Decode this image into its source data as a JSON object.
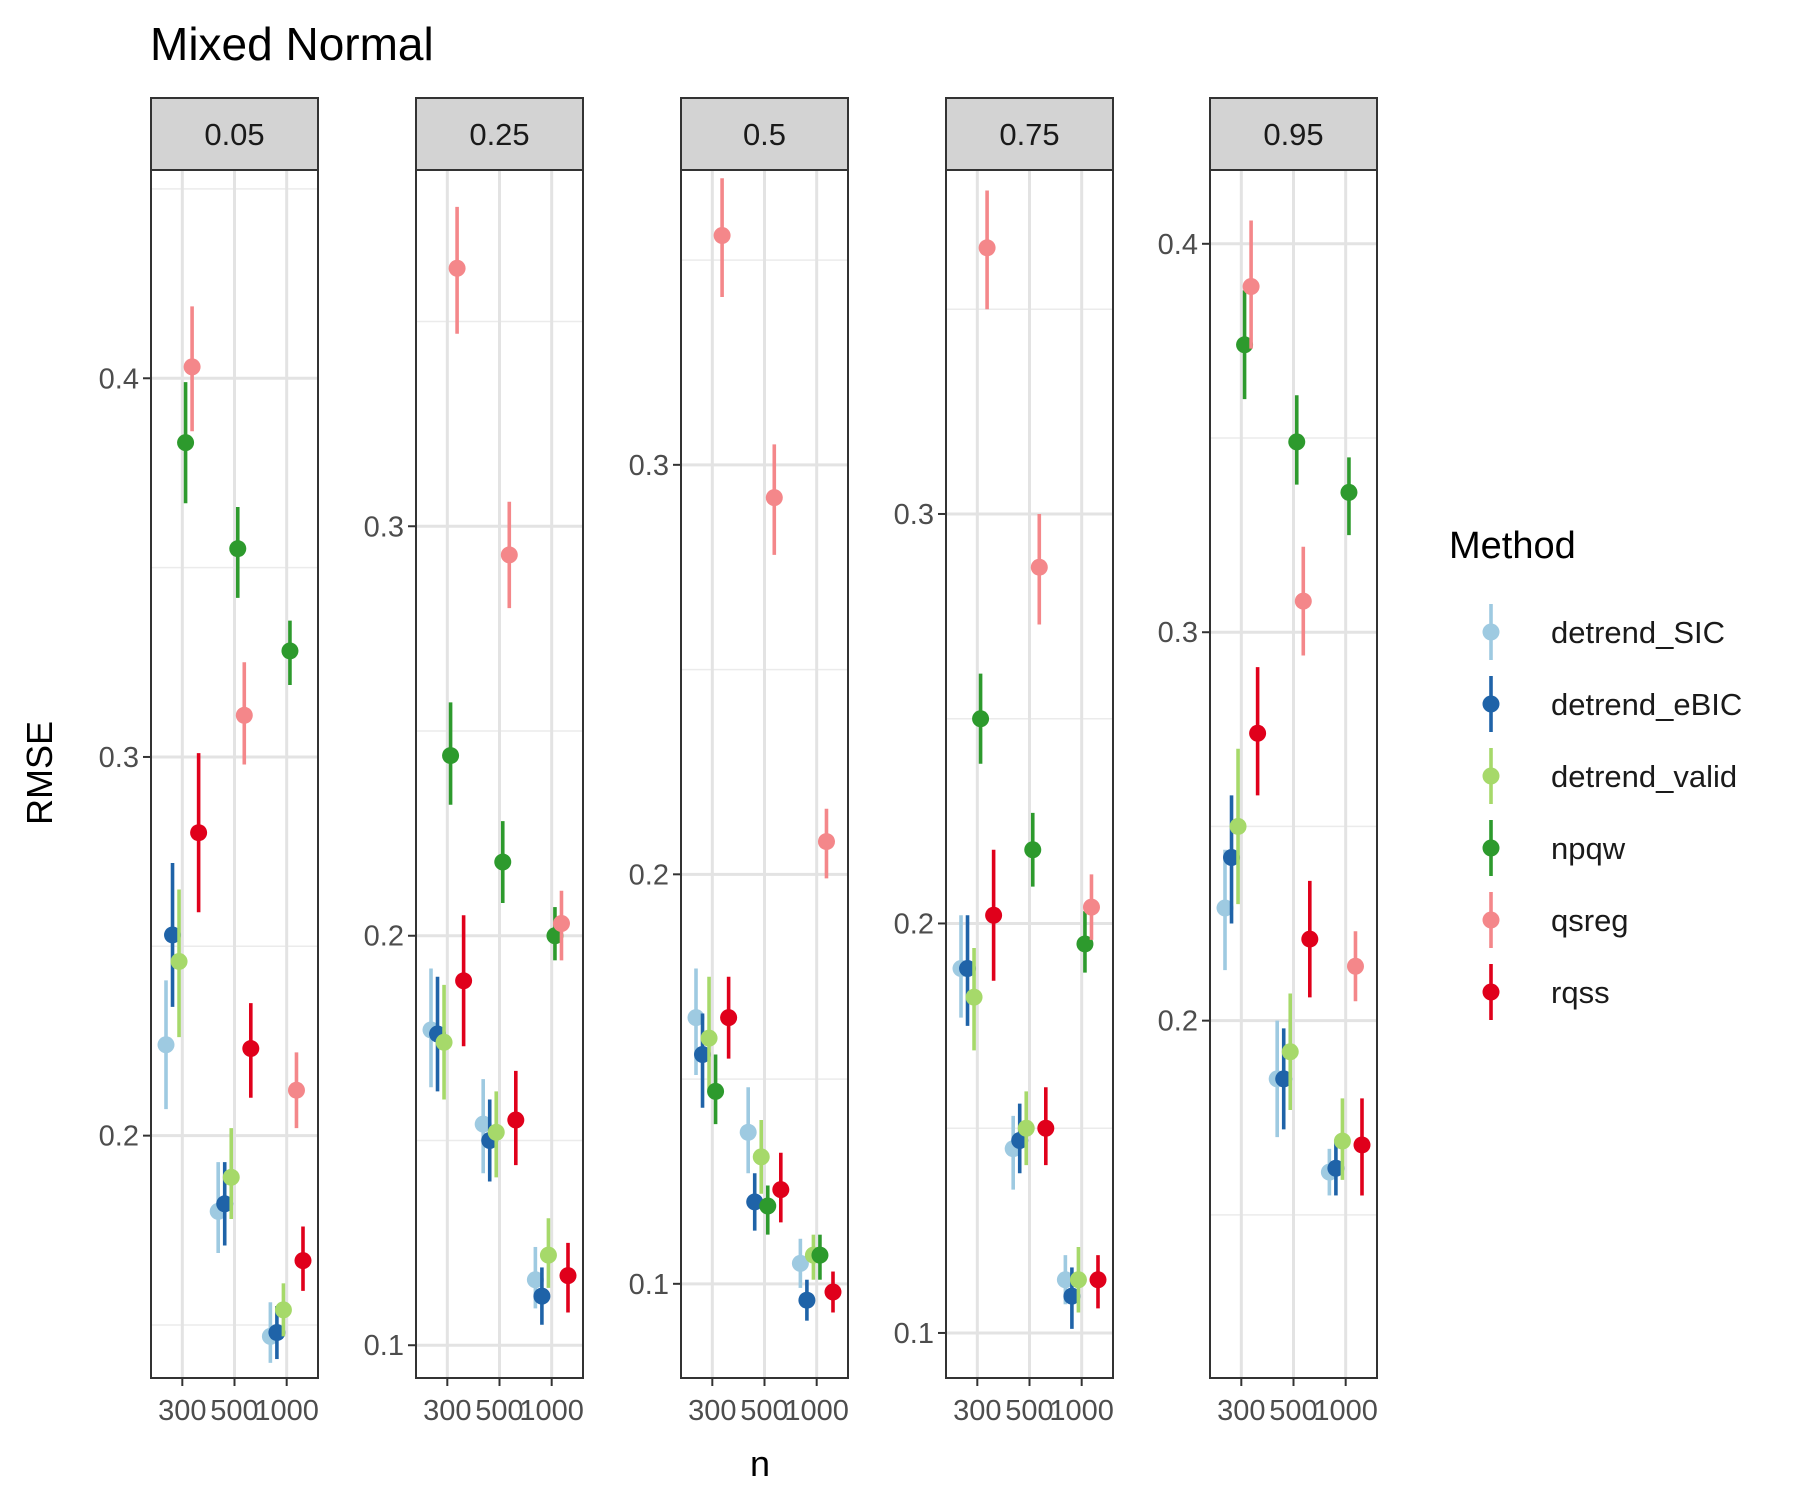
{
  "chart_data": {
    "type": "scatter",
    "title": "Mixed Normal",
    "xlabel": "n",
    "ylabel": "RMSE",
    "x_categories": [
      "300",
      "500",
      "1000"
    ],
    "legend": {
      "title": "Method",
      "placement": "right",
      "entries": [
        "detrend_SIC",
        "detrend_eBIC",
        "detrend_valid",
        "npqw",
        "qsreg",
        "rqss"
      ]
    },
    "colors": {
      "detrend_SIC": "#9ecae1",
      "detrend_eBIC": "#1f63a8",
      "detrend_valid": "#a6d96a",
      "npqw": "#2d9a2d",
      "qsreg": "#f4878a",
      "rqss": "#e0001b"
    },
    "grid": true,
    "panels": [
      {
        "strip": "0.05",
        "ylim": [
          0.136,
          0.455
        ],
        "yticks": [
          0.2,
          0.3,
          0.4
        ],
        "ytick_labels": [
          "0.2",
          "0.3",
          "0.4"
        ],
        "series": [
          {
            "name": "detrend_SIC",
            "points": [
              [
                0.224,
                0.207,
                0.241
              ],
              [
                0.18,
                0.169,
                0.193
              ],
              [
                0.147,
                0.14,
                0.156
              ]
            ]
          },
          {
            "name": "detrend_eBIC",
            "points": [
              [
                0.253,
                0.234,
                0.272
              ],
              [
                0.182,
                0.171,
                0.193
              ],
              [
                0.148,
                0.141,
                0.155
              ]
            ]
          },
          {
            "name": "detrend_valid",
            "points": [
              [
                0.246,
                0.226,
                0.265
              ],
              [
                0.189,
                0.178,
                0.202
              ],
              [
                0.154,
                0.147,
                0.161
              ]
            ]
          },
          {
            "name": "npqw",
            "points": [
              [
                0.383,
                0.367,
                0.399
              ],
              [
                0.355,
                0.342,
                0.366
              ],
              [
                0.328,
                0.319,
                0.336
              ]
            ]
          },
          {
            "name": "qsreg",
            "points": [
              [
                0.403,
                0.386,
                0.419
              ],
              [
                0.311,
                0.298,
                0.325
              ],
              [
                0.212,
                0.202,
                0.222
              ]
            ]
          },
          {
            "name": "rqss",
            "points": [
              [
                0.28,
                0.259,
                0.301
              ],
              [
                0.223,
                0.21,
                0.235
              ],
              [
                0.167,
                0.159,
                0.176
              ]
            ]
          }
        ]
      },
      {
        "strip": "0.25",
        "ylim": [
          0.092,
          0.387
        ],
        "yticks": [
          0.1,
          0.2,
          0.3
        ],
        "ytick_labels": [
          "0.1",
          "0.2",
          "0.3"
        ],
        "series": [
          {
            "name": "detrend_SIC",
            "points": [
              [
                0.177,
                0.163,
                0.192
              ],
              [
                0.154,
                0.142,
                0.165
              ],
              [
                0.116,
                0.109,
                0.124
              ]
            ]
          },
          {
            "name": "detrend_eBIC",
            "points": [
              [
                0.176,
                0.162,
                0.19
              ],
              [
                0.15,
                0.14,
                0.16
              ],
              [
                0.112,
                0.105,
                0.119
              ]
            ]
          },
          {
            "name": "detrend_valid",
            "points": [
              [
                0.174,
                0.16,
                0.188
              ],
              [
                0.152,
                0.141,
                0.162
              ],
              [
                0.122,
                0.114,
                0.131
              ]
            ]
          },
          {
            "name": "npqw",
            "points": [
              [
                0.244,
                0.232,
                0.257
              ],
              [
                0.218,
                0.208,
                0.228
              ],
              [
                0.2,
                0.194,
                0.207
              ]
            ]
          },
          {
            "name": "qsreg",
            "points": [
              [
                0.363,
                0.347,
                0.378
              ],
              [
                0.293,
                0.28,
                0.306
              ],
              [
                0.203,
                0.194,
                0.211
              ]
            ]
          },
          {
            "name": "rqss",
            "points": [
              [
                0.189,
                0.173,
                0.205
              ],
              [
                0.155,
                0.144,
                0.167
              ],
              [
                0.117,
                0.108,
                0.125
              ]
            ]
          }
        ]
      },
      {
        "strip": "0.5",
        "ylim": [
          0.077,
          0.372
        ],
        "yticks": [
          0.1,
          0.2,
          0.3
        ],
        "ytick_labels": [
          "0.1",
          "0.2",
          "0.3"
        ],
        "series": [
          {
            "name": "detrend_SIC",
            "points": [
              [
                0.165,
                0.151,
                0.177
              ],
              [
                0.137,
                0.127,
                0.148
              ],
              [
                0.105,
                0.099,
                0.111
              ]
            ]
          },
          {
            "name": "detrend_eBIC",
            "points": [
              [
                0.156,
                0.143,
                0.166
              ],
              [
                0.12,
                0.113,
                0.127
              ],
              [
                0.096,
                0.091,
                0.101
              ]
            ]
          },
          {
            "name": "detrend_valid",
            "points": [
              [
                0.16,
                0.147,
                0.175
              ],
              [
                0.131,
                0.122,
                0.14
              ],
              [
                0.107,
                0.101,
                0.112
              ]
            ]
          },
          {
            "name": "npqw",
            "points": [
              [
                0.147,
                0.139,
                0.156
              ],
              [
                0.119,
                0.112,
                0.124
              ],
              [
                0.107,
                0.101,
                0.112
              ]
            ]
          },
          {
            "name": "qsreg",
            "points": [
              [
                0.356,
                0.341,
                0.37
              ],
              [
                0.292,
                0.278,
                0.305
              ],
              [
                0.208,
                0.199,
                0.216
              ]
            ]
          },
          {
            "name": "rqss",
            "points": [
              [
                0.165,
                0.155,
                0.175
              ],
              [
                0.123,
                0.115,
                0.132
              ],
              [
                0.098,
                0.093,
                0.103
              ]
            ]
          }
        ]
      },
      {
        "strip": "0.75",
        "ylim": [
          0.089,
          0.384
        ],
        "yticks": [
          0.1,
          0.2,
          0.3
        ],
        "ytick_labels": [
          "0.1",
          "0.2",
          "0.3"
        ],
        "series": [
          {
            "name": "detrend_SIC",
            "points": [
              [
                0.189,
                0.177,
                0.202
              ],
              [
                0.145,
                0.135,
                0.153
              ],
              [
                0.113,
                0.107,
                0.119
              ]
            ]
          },
          {
            "name": "detrend_eBIC",
            "points": [
              [
                0.189,
                0.175,
                0.202
              ],
              [
                0.147,
                0.139,
                0.156
              ],
              [
                0.109,
                0.101,
                0.116
              ]
            ]
          },
          {
            "name": "detrend_valid",
            "points": [
              [
                0.182,
                0.169,
                0.194
              ],
              [
                0.15,
                0.141,
                0.159
              ],
              [
                0.113,
                0.105,
                0.121
              ]
            ]
          },
          {
            "name": "npqw",
            "points": [
              [
                0.25,
                0.239,
                0.261
              ],
              [
                0.218,
                0.209,
                0.227
              ],
              [
                0.195,
                0.188,
                0.203
              ]
            ]
          },
          {
            "name": "qsreg",
            "points": [
              [
                0.365,
                0.35,
                0.379
              ],
              [
                0.287,
                0.273,
                0.3
              ],
              [
                0.204,
                0.196,
                0.212
              ]
            ]
          },
          {
            "name": "rqss",
            "points": [
              [
                0.202,
                0.186,
                0.218
              ],
              [
                0.15,
                0.141,
                0.16
              ],
              [
                0.113,
                0.106,
                0.119
              ]
            ]
          }
        ]
      },
      {
        "strip": "0.95",
        "ylim": [
          0.108,
          0.419
        ],
        "yticks": [
          0.2,
          0.3,
          0.4
        ],
        "ytick_labels": [
          "0.2",
          "0.3",
          "0.4"
        ],
        "series": [
          {
            "name": "detrend_SIC",
            "points": [
              [
                0.229,
                0.213,
                0.244
              ],
              [
                0.185,
                0.17,
                0.2
              ],
              [
                0.161,
                0.155,
                0.167
              ]
            ]
          },
          {
            "name": "detrend_eBIC",
            "points": [
              [
                0.242,
                0.225,
                0.258
              ],
              [
                0.185,
                0.172,
                0.198
              ],
              [
                0.162,
                0.155,
                0.169
              ]
            ]
          },
          {
            "name": "detrend_valid",
            "points": [
              [
                0.25,
                0.23,
                0.27
              ],
              [
                0.192,
                0.177,
                0.207
              ],
              [
                0.169,
                0.159,
                0.18
              ]
            ]
          },
          {
            "name": "npqw",
            "points": [
              [
                0.374,
                0.36,
                0.388
              ],
              [
                0.349,
                0.338,
                0.361
              ],
              [
                0.336,
                0.325,
                0.345
              ]
            ]
          },
          {
            "name": "qsreg",
            "points": [
              [
                0.389,
                0.373,
                0.406
              ],
              [
                0.308,
                0.294,
                0.322
              ],
              [
                0.214,
                0.205,
                0.223
              ]
            ]
          },
          {
            "name": "rqss",
            "points": [
              [
                0.274,
                0.258,
                0.291
              ],
              [
                0.221,
                0.206,
                0.236
              ],
              [
                0.168,
                0.155,
                0.18
              ]
            ]
          }
        ]
      }
    ]
  }
}
